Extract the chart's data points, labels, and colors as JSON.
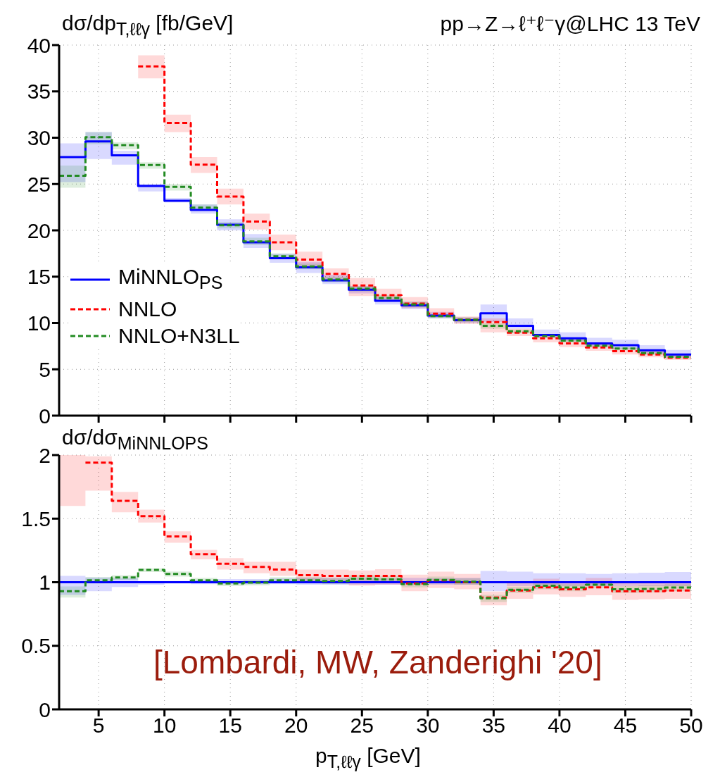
{
  "chart_data": [
    {
      "type": "step",
      "title": "pp→Z→ℓ⁺ℓ⁻γ@LHC 13 TeV",
      "ylabel": "dσ/dp$_{T,ℓℓγ}$ [fb/GeV]",
      "x": [
        2,
        4,
        6,
        8,
        10,
        12,
        14,
        16,
        18,
        20,
        22,
        24,
        26,
        28,
        30,
        32,
        34,
        36,
        38,
        40,
        42,
        44,
        46,
        48,
        50
      ],
      "series": [
        {
          "name": "MiNNLO$_{PS}$",
          "color": "#0000ff",
          "line_style": "solid",
          "values": [
            27.9,
            29.6,
            28.1,
            24.8,
            23.2,
            22.2,
            20.6,
            18.7,
            17.0,
            16.0,
            14.6,
            13.6,
            12.4,
            11.9,
            10.8,
            10.3,
            11.05,
            9.7,
            8.7,
            8.35,
            7.8,
            7.6,
            7.05,
            6.6,
            6.6
          ],
          "lower": [
            25.2,
            27.7,
            27.1,
            24.2,
            23.0,
            21.8,
            20.0,
            18.1,
            16.5,
            15.4,
            14.2,
            13.2,
            12.0,
            11.5,
            10.5,
            10.0,
            10.1,
            9.4,
            8.4,
            8.0,
            7.5,
            7.2,
            6.7,
            6.3,
            6.3
          ],
          "upper": [
            29.4,
            30.6,
            28.6,
            25.0,
            23.5,
            22.8,
            21.2,
            19.6,
            17.5,
            16.6,
            15.2,
            14.0,
            12.8,
            12.3,
            11.2,
            10.6,
            12.0,
            10.5,
            9.3,
            9.0,
            8.4,
            8.2,
            7.6,
            7.1,
            7.1
          ]
        },
        {
          "name": "NNLO",
          "color": "#ff0000",
          "line_style": "dashed",
          "values": [
            null,
            null,
            null,
            37.7,
            31.6,
            27.1,
            23.65,
            20.95,
            18.7,
            16.85,
            15.3,
            14.05,
            13.0,
            12.1,
            11.0,
            10.35,
            10.1,
            8.95,
            8.35,
            7.8,
            7.35,
            6.95,
            6.6,
            6.25,
            6.25
          ],
          "lower": [
            null,
            null,
            null,
            36.4,
            30.6,
            26.2,
            22.8,
            20.1,
            17.85,
            16.1,
            14.6,
            12.9,
            12.45,
            11.6,
            10.6,
            9.9,
            9.0,
            8.6,
            7.9,
            7.4,
            7.0,
            6.6,
            6.3,
            6.0,
            6.0
          ],
          "upper": [
            null,
            null,
            null,
            38.9,
            32.5,
            27.9,
            24.5,
            21.8,
            19.55,
            17.7,
            15.9,
            14.85,
            13.7,
            12.8,
            11.6,
            10.7,
            10.5,
            9.4,
            8.8,
            8.3,
            7.7,
            7.3,
            7.0,
            6.6,
            6.6
          ]
        },
        {
          "name": "NNLO+N3LL",
          "color": "#228b22",
          "line_style": "dashed",
          "values": [
            25.9,
            30.05,
            29.2,
            27.05,
            24.7,
            22.45,
            20.55,
            18.8,
            17.2,
            16.1,
            14.7,
            13.7,
            12.7,
            12.0,
            10.75,
            10.35,
            9.7,
            9.1,
            8.6,
            8.1,
            7.55,
            7.25,
            6.75,
            6.35,
            6.35
          ],
          "lower": [
            24.6,
            29.3,
            28.75,
            26.65,
            24.3,
            22.2,
            20.2,
            18.4,
            16.9,
            15.8,
            14.4,
            13.4,
            12.4,
            11.7,
            10.5,
            10.1,
            9.4,
            8.9,
            8.4,
            7.9,
            7.35,
            7.05,
            6.55,
            6.15,
            6.15
          ],
          "upper": [
            27.0,
            30.6,
            29.5,
            27.35,
            25.0,
            22.8,
            20.9,
            19.2,
            17.5,
            16.4,
            15.0,
            14.0,
            13.0,
            12.3,
            11.0,
            10.6,
            10.0,
            9.3,
            8.8,
            8.3,
            7.75,
            7.45,
            6.95,
            6.55,
            6.55
          ]
        }
      ],
      "xlim": [
        2,
        50
      ],
      "xticks": [
        5,
        10,
        15,
        20,
        25,
        30,
        35,
        40,
        45,
        50
      ],
      "ylim": [
        0,
        40
      ],
      "yticks": [
        0,
        5,
        10,
        15,
        20,
        25,
        30,
        35,
        40
      ],
      "grid": true,
      "legend": "bottom left",
      "tick_labels": "y"
    },
    {
      "type": "step",
      "ylabel": "dσ/dσ$_{MiNNLO}$$_{PS}$",
      "xlabel": "p$_{T,ℓℓγ}$ [GeV]",
      "annotations": [
        "[Lombardi, MW, Zanderighi '20]"
      ],
      "x": [
        2,
        4,
        6,
        8,
        10,
        12,
        14,
        16,
        18,
        20,
        22,
        24,
        26,
        28,
        30,
        32,
        34,
        36,
        38,
        40,
        42,
        44,
        46,
        48,
        50
      ],
      "series": [
        {
          "color": "#0000ff",
          "line_style": "solid",
          "values": [
            1,
            1,
            1,
            1,
            1,
            1,
            1,
            1,
            1,
            1,
            1,
            1,
            1,
            1,
            1,
            1,
            1,
            1,
            1,
            1,
            1,
            1,
            1,
            1,
            1
          ],
          "lower": [
            0.9,
            0.93,
            0.963,
            0.98,
            0.99,
            0.985,
            0.985,
            0.985,
            0.985,
            0.98,
            0.98,
            0.98,
            0.98,
            0.98,
            0.98,
            0.98,
            0.93,
            0.97,
            0.97,
            0.97,
            0.97,
            0.97,
            0.97,
            0.97,
            0.97
          ],
          "upper": [
            1.05,
            1.037,
            1.033,
            1.01,
            1.01,
            1.02,
            1.025,
            1.025,
            1.03,
            1.035,
            1.035,
            1.035,
            1.03,
            1.035,
            1.03,
            1.035,
            1.088,
            1.083,
            1.07,
            1.07,
            1.065,
            1.07,
            1.075,
            1.08,
            1.08
          ]
        },
        {
          "color": "#ff0000",
          "line_style": "dashed",
          "values": [
            null,
            1.94,
            1.64,
            1.52,
            1.36,
            1.22,
            1.145,
            1.12,
            1.1,
            1.055,
            1.05,
            1.05,
            1.05,
            0.99,
            1.015,
            1.0,
            0.88,
            0.935,
            0.96,
            0.945,
            0.96,
            0.93,
            0.93,
            0.935,
            0.935
          ],
          "lower": [
            1.6,
            1.72,
            1.55,
            1.47,
            1.31,
            1.18,
            1.1,
            1.07,
            1.05,
            1.0,
            0.99,
            0.973,
            0.981,
            0.93,
            0.954,
            0.945,
            0.819,
            0.87,
            0.904,
            0.885,
            0.898,
            0.861,
            0.865,
            0.87,
            0.87
          ],
          "upper": [
            2,
            1.99,
            1.71,
            1.57,
            1.4,
            1.255,
            1.19,
            1.16,
            1.16,
            1.1,
            1.1,
            1.093,
            1.102,
            1.059,
            1.083,
            1.065,
            0.926,
            0.991,
            1.028,
            1.009,
            1.033,
            1.0,
            1.0,
            1.0,
            1.0
          ]
        },
        {
          "color": "#228b22",
          "line_style": "dashed",
          "values": [
            0.93,
            1.015,
            1.037,
            1.097,
            1.065,
            1.015,
            0.99,
            0.997,
            1.015,
            1.015,
            1.01,
            1.028,
            1.022,
            0.985,
            1.018,
            1.004,
            0.874,
            0.94,
            0.972,
            0.959,
            0.981,
            0.944,
            0.948,
            0.959,
            0.959
          ],
          "lower": [
            0.88,
            0.99,
            1.02,
            1.08,
            1.045,
            0.995,
            0.97,
            0.975,
            0.99,
            0.99,
            0.985,
            1.0,
            0.995,
            0.96,
            0.99,
            0.98,
            0.845,
            0.915,
            0.945,
            0.93,
            0.955,
            0.915,
            0.92,
            0.93,
            0.93
          ],
          "upper": [
            0.967,
            1.04,
            1.055,
            1.11,
            1.085,
            1.035,
            1.01,
            1.02,
            1.04,
            1.04,
            1.035,
            1.055,
            1.05,
            1.01,
            1.045,
            1.03,
            0.9,
            0.965,
            1.0,
            0.985,
            1.005,
            0.97,
            0.975,
            0.985,
            0.985
          ]
        }
      ],
      "xlim": [
        2,
        50
      ],
      "xticks": [
        5,
        10,
        15,
        20,
        25,
        30,
        35,
        40,
        45,
        50
      ],
      "ylim": [
        0,
        2
      ],
      "yticks": [
        0,
        0.5,
        1,
        1.5,
        2
      ],
      "grid": true
    }
  ]
}
